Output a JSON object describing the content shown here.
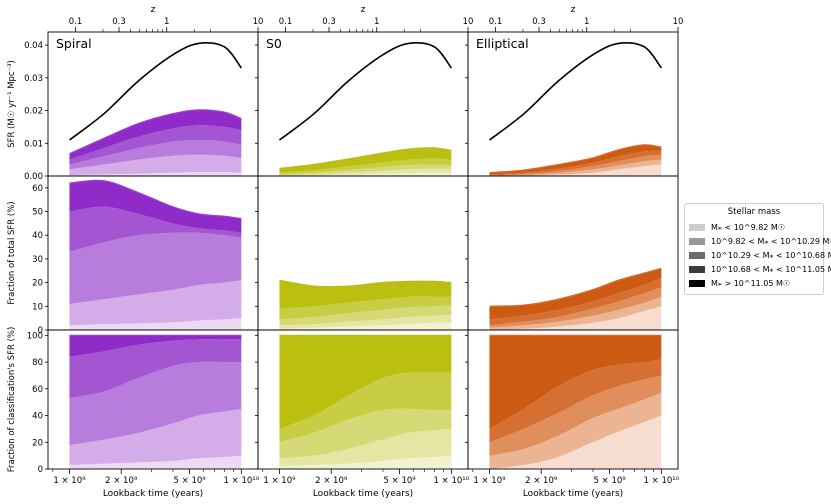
{
  "chart_data": {
    "type": "area",
    "description": "Stacked cosmic SFR contributions by stellar mass bin for three morphological classes",
    "columns": [
      "Spiral",
      "S0",
      "Elliptical"
    ],
    "colors": {
      "Spiral": [
        "#eed9f4",
        "#d4ace8",
        "#b87cdc",
        "#a455d2",
        "#8f2bc8"
      ],
      "S0": [
        "#f2f2d0",
        "#e4e6a4",
        "#d6da76",
        "#c9cd44",
        "#bbbf10"
      ],
      "Elliptical": [
        "#f6ddd0",
        "#ebb594",
        "#e08e5c",
        "#d67032",
        "#cc5a12"
      ],
      "line": {
        "Spiral": "#9b3fcf",
        "S0": "#b8bc1a",
        "Elliptical": "#d96a2a",
        "total": "#000000"
      }
    },
    "x_log": [
      9.0,
      9.2,
      9.4,
      9.6,
      9.75,
      9.9,
      10.0
    ],
    "x_axis": {
      "label": "Lookback time (years)",
      "range": [
        750000000.0,
        12500000000.0
      ],
      "scale": "log",
      "tick_labels": [
        "1 × 10⁹",
        "2 × 10⁹",
        "5 × 10⁹",
        "1 × 10¹⁰"
      ]
    },
    "top_axis": {
      "label": "z",
      "tick_labels": [
        "0.1",
        "0.3",
        "1",
        "10"
      ]
    },
    "total_sfr": [
      0.011,
      0.019,
      0.029,
      0.037,
      0.0405,
      0.0395,
      0.033
    ],
    "rows": [
      {
        "ylabel": "SFR (M☉ yr⁻¹ Mpc⁻³)",
        "ylim": [
          0,
          0.044
        ],
        "yticks": [
          "0.00",
          "0.01",
          "0.02",
          "0.03",
          "0.04"
        ],
        "panels": [
          {
            "label": "Spiral",
            "cumulative": [
              [
                0.0003,
                0.0005,
                0.0007,
                0.001,
                0.0012,
                0.0012,
                0.001
              ],
              [
                0.002,
                0.0035,
                0.005,
                0.0062,
                0.0065,
                0.0062,
                0.0055
              ],
              [
                0.0035,
                0.006,
                0.0085,
                0.0105,
                0.011,
                0.0105,
                0.0095
              ],
              [
                0.005,
                0.0085,
                0.012,
                0.0145,
                0.0155,
                0.015,
                0.014
              ],
              [
                0.0068,
                0.0115,
                0.016,
                0.019,
                0.0202,
                0.0195,
                0.0175
              ]
            ]
          },
          {
            "label": "S0",
            "cumulative": [
              [
                0.0001,
                0.0002,
                0.0004,
                0.0007,
                0.0009,
                0.001,
                0.0009
              ],
              [
                0.0002,
                0.0005,
                0.001,
                0.0016,
                0.002,
                0.0022,
                0.0021
              ],
              [
                0.0005,
                0.001,
                0.0018,
                0.0027,
                0.0033,
                0.0035,
                0.0033
              ],
              [
                0.001,
                0.0018,
                0.0029,
                0.0041,
                0.005,
                0.0053,
                0.005
              ],
              [
                0.0023,
                0.0035,
                0.0052,
                0.007,
                0.0082,
                0.0086,
                0.0078
              ]
            ]
          },
          {
            "label": "Elliptical",
            "cumulative": [
              [
                0.0,
                0.0001,
                0.0004,
                0.001,
                0.002,
                0.003,
                0.0035
              ],
              [
                0.0001,
                0.0003,
                0.0009,
                0.002,
                0.0032,
                0.0045,
                0.005
              ],
              [
                0.0002,
                0.0006,
                0.0015,
                0.003,
                0.0045,
                0.006,
                0.0065
              ],
              [
                0.0005,
                0.001,
                0.0022,
                0.004,
                0.006,
                0.0075,
                0.0078
              ],
              [
                0.001,
                0.0018,
                0.0035,
                0.0055,
                0.008,
                0.0095,
                0.0088
              ]
            ]
          }
        ]
      },
      {
        "ylabel": "Fraction of total SFR (%)",
        "ylim": [
          0,
          65
        ],
        "yticks": [
          "0",
          "10",
          "20",
          "30",
          "40",
          "50",
          "60"
        ],
        "panels": [
          {
            "cumulative": [
              [
                2,
                2.5,
                2.8,
                3.2,
                4,
                4.5,
                5
              ],
              [
                11,
                13,
                15,
                17,
                19,
                20,
                21
              ],
              [
                33,
                37,
                40,
                41,
                41,
                40,
                39
              ],
              [
                50,
                52,
                49,
                45,
                43,
                42,
                41
              ],
              [
                62,
                63,
                58,
                52,
                49,
                48,
                47
              ]
            ]
          },
          {
            "cumulative": [
              [
                0.5,
                1,
                1.5,
                2,
                2.5,
                3,
                3
              ],
              [
                2,
                2.5,
                3.5,
                4.5,
                5.5,
                6,
                6.5
              ],
              [
                4.5,
                5.5,
                7,
                8.5,
                9.5,
                10,
                10.5
              ],
              [
                9,
                10,
                11.5,
                13,
                14,
                14,
                14
              ],
              [
                21,
                18.5,
                18.5,
                20,
                20.5,
                20.5,
                20
              ]
            ]
          },
          {
            "cumulative": [
              [
                0,
                0.5,
                1.5,
                3,
                5,
                8,
                10
              ],
              [
                1,
                2,
                3.5,
                6,
                8.5,
                11.5,
                14
              ],
              [
                2,
                3.5,
                5.5,
                9,
                12,
                15.5,
                18
              ],
              [
                4.5,
                6,
                8.5,
                12,
                15.5,
                19,
                22
              ],
              [
                10,
                10.5,
                13,
                17,
                21,
                24,
                26
              ]
            ]
          }
        ]
      },
      {
        "ylabel": "Fraction of classification's SFR (%)",
        "ylim": [
          0,
          104
        ],
        "yticks": [
          "0",
          "20",
          "40",
          "60",
          "80",
          "100"
        ],
        "panels": [
          {
            "cumulative": [
              [
                3,
                4,
                5,
                6,
                8,
                9,
                10
              ],
              [
                18,
                22,
                27,
                34,
                40,
                43,
                45
              ],
              [
                53,
                58,
                68,
                77,
                80,
                80,
                80
              ],
              [
                84,
                88,
                93,
                96,
                97,
                97,
                97
              ],
              [
                100,
                100,
                100,
                100,
                100,
                100,
                100
              ]
            ]
          },
          {
            "cumulative": [
              [
                2,
                3,
                4,
                6,
                8,
                9,
                10
              ],
              [
                8,
                10,
                15,
                22,
                27,
                29,
                30
              ],
              [
                20,
                27,
                37,
                44,
                45,
                44,
                44
              ],
              [
                30,
                40,
                55,
                68,
                72,
                72,
                72
              ],
              [
                100,
                100,
                100,
                100,
                100,
                100,
                100
              ]
            ]
          },
          {
            "cumulative": [
              [
                0,
                3,
                9,
                20,
                28,
                35,
                40
              ],
              [
                10,
                15,
                25,
                38,
                45,
                52,
                57
              ],
              [
                20,
                30,
                42,
                55,
                62,
                67,
                70
              ],
              [
                30,
                45,
                62,
                74,
                78,
                80,
                82
              ],
              [
                100,
                100,
                100,
                100,
                100,
                100,
                100
              ]
            ]
          }
        ]
      }
    ],
    "legend": {
      "title": "Stellar mass",
      "entries": [
        "M⁎ < 10^9.82 M☉",
        "10^9.82 < M⁎ < 10^10.29 M☉",
        "10^10.29 < M⁎ < 10^10.68 M☉",
        "10^10.68 < M⁎ < 10^11.05 M☉",
        "M⁎ > 10^11.05 M☉"
      ],
      "colors": [
        "#cccccc",
        "#999999",
        "#6b6b6b",
        "#3b3b3b",
        "#000000"
      ]
    }
  }
}
